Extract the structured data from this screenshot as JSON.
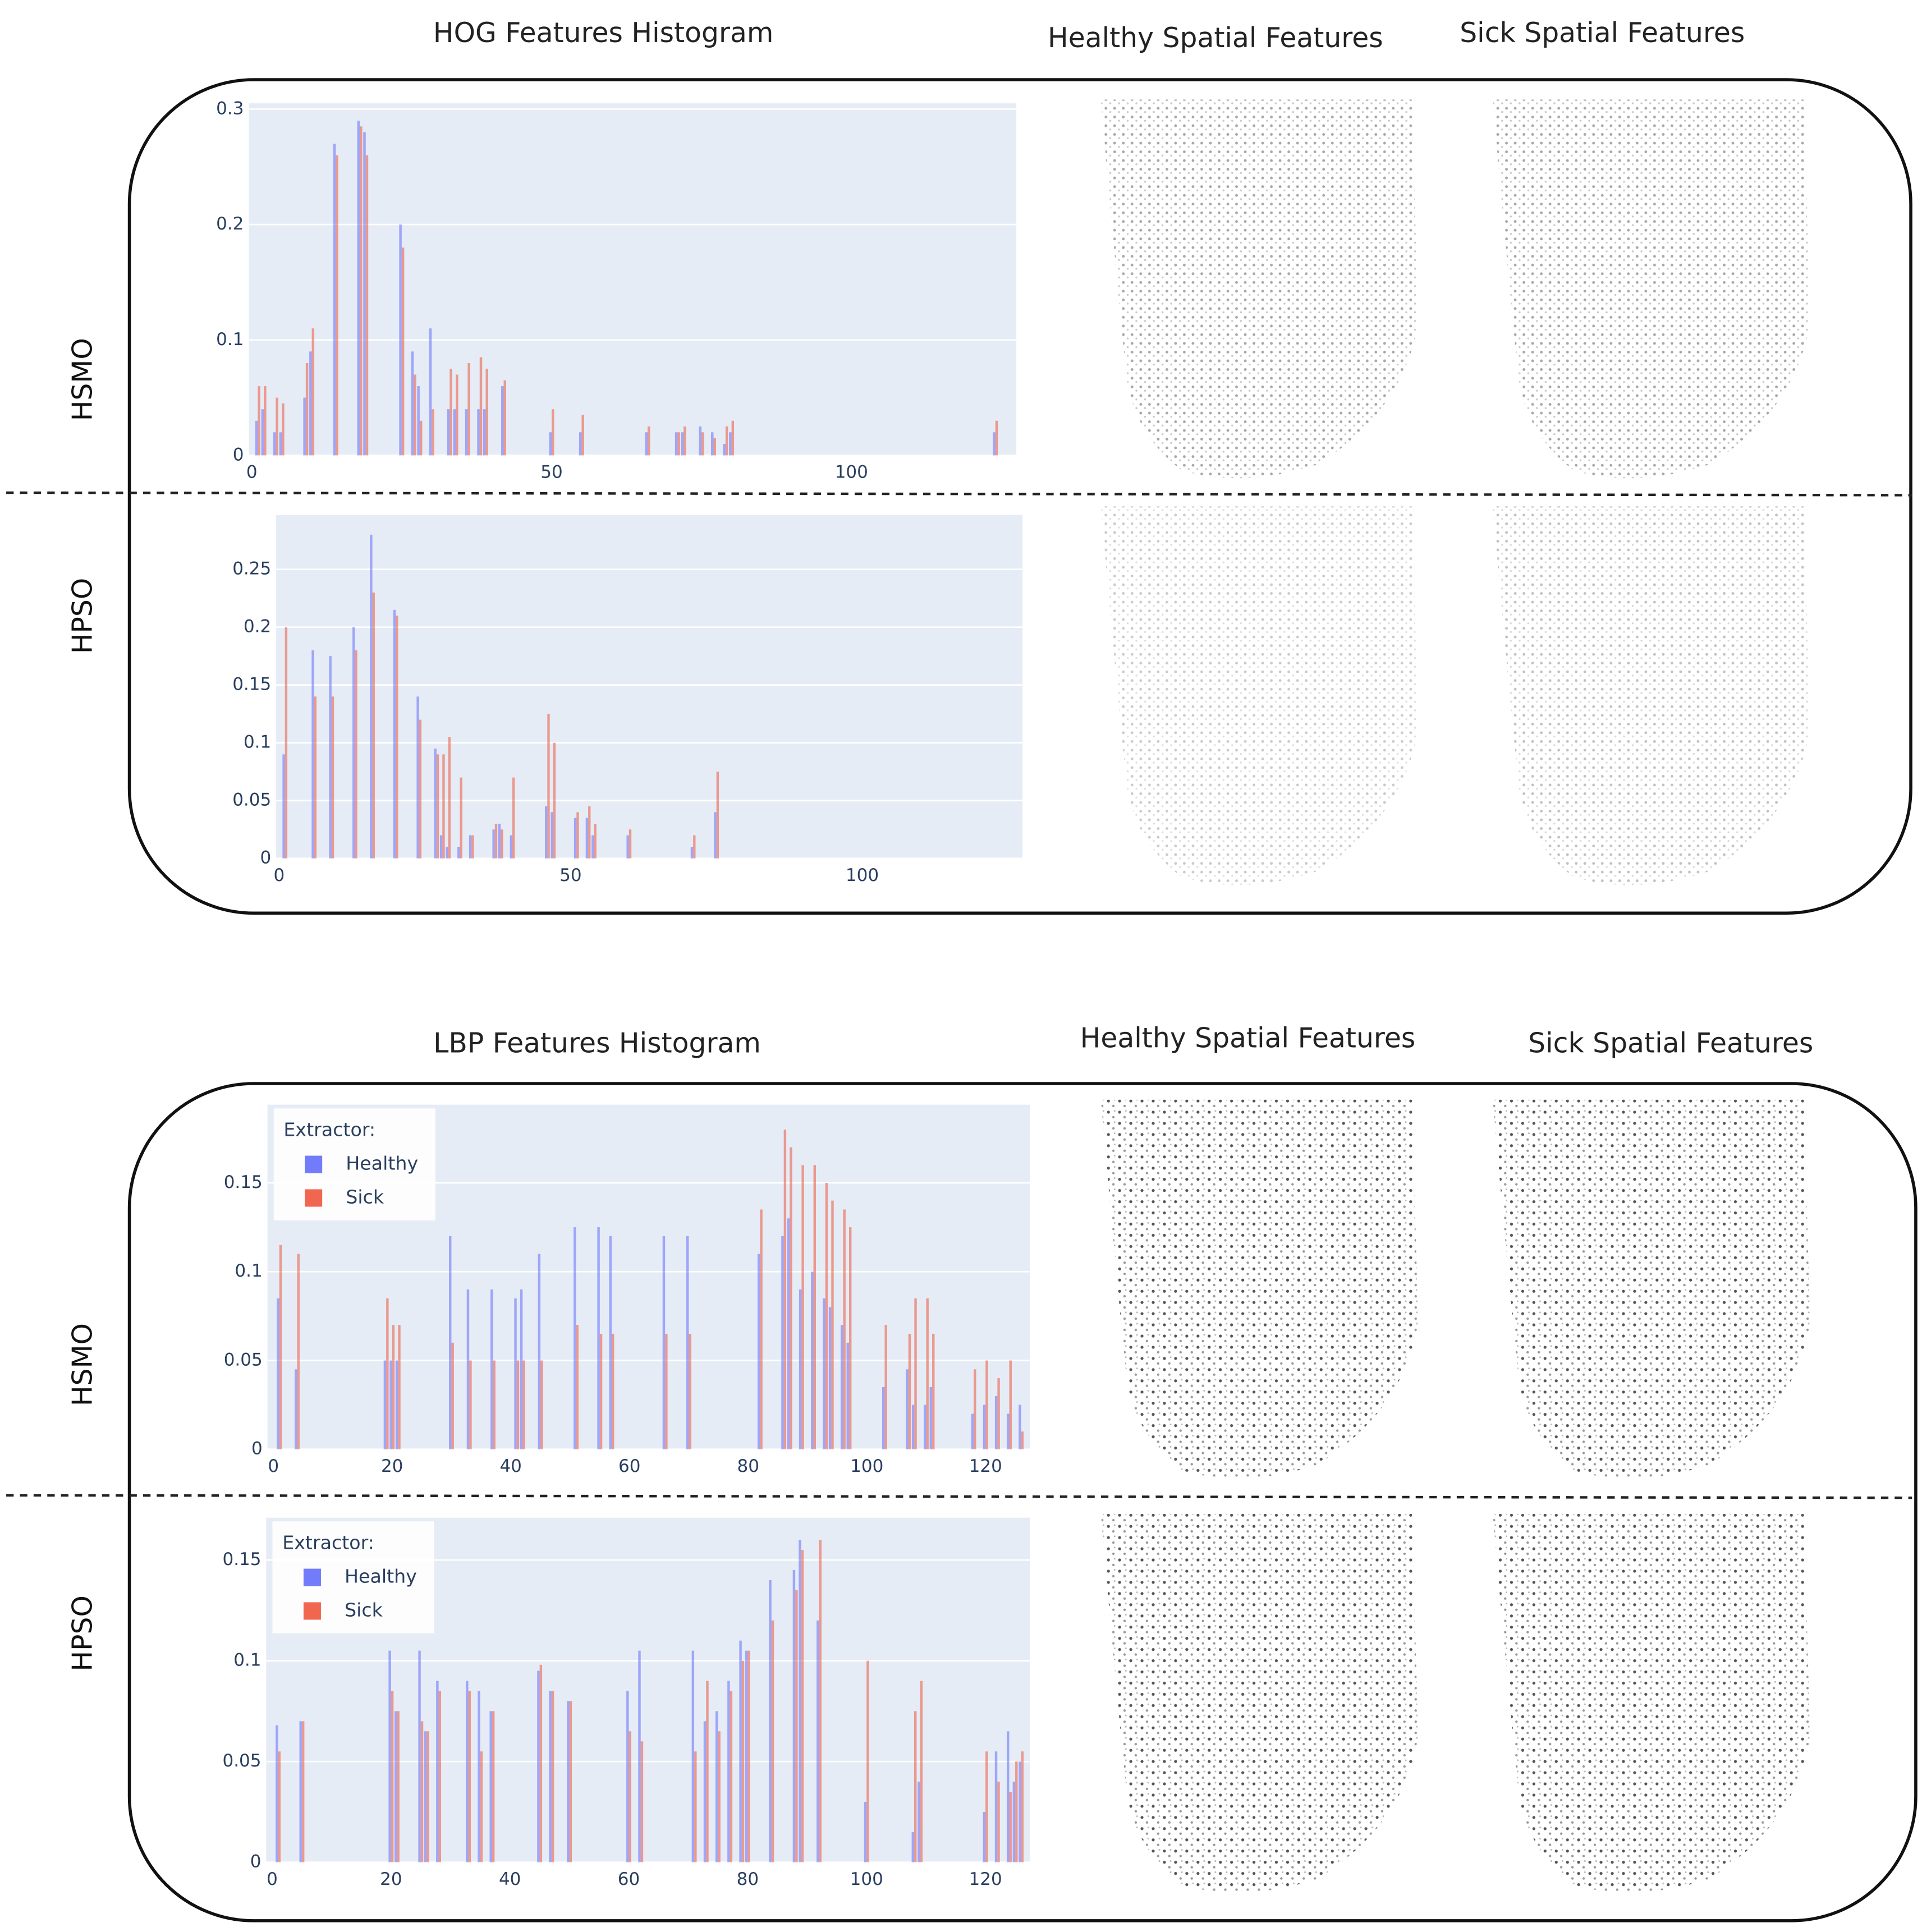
{
  "figure": {
    "panels": [
      {
        "title": "HOG Features Histogram",
        "healthy_title": "Healthy Spatial Features",
        "sick_title": "Sick Spatial Features",
        "rows": [
          "HSMO",
          "HPSO"
        ]
      },
      {
        "title": "LBP Features Histogram",
        "healthy_title": "Healthy Spatial Features",
        "sick_title": "Sick Spatial Features",
        "rows": [
          "HSMO",
          "HPSO"
        ]
      }
    ]
  },
  "chart_data": [
    {
      "type": "bar",
      "grid": true,
      "background": "#e5ecf6",
      "xlim": [
        -0.5,
        127.5
      ],
      "ylim": [
        0,
        0.305
      ],
      "xticks": [
        0,
        50,
        100
      ],
      "yticks": [
        0,
        0.1,
        0.2,
        0.3
      ],
      "x": [
        1,
        2,
        4,
        5,
        9,
        10,
        14,
        18,
        19,
        25,
        27,
        28,
        30,
        33,
        34,
        36,
        38,
        39,
        42,
        50,
        55,
        66,
        71,
        72,
        75,
        77,
        79,
        80,
        124
      ],
      "series": [
        {
          "name": "Healthy",
          "color": "#636efa",
          "values": [
            0.03,
            0.04,
            0.02,
            0.02,
            0.05,
            0.09,
            0.27,
            0.29,
            0.28,
            0.2,
            0.09,
            0.06,
            0.11,
            0.04,
            0.04,
            0.04,
            0.04,
            0.04,
            0.06,
            0.02,
            0.02,
            0.02,
            0.02,
            0.02,
            0.025,
            0.02,
            0.01,
            0.02,
            0.02
          ]
        },
        {
          "name": "Sick",
          "color": "#ef553b",
          "values": [
            0.06,
            0.06,
            0.05,
            0.045,
            0.08,
            0.11,
            0.26,
            0.285,
            0.26,
            0.18,
            0.07,
            0.03,
            0.04,
            0.075,
            0.07,
            0.08,
            0.085,
            0.075,
            0.065,
            0.04,
            0.035,
            0.025,
            0.02,
            0.025,
            0.02,
            0.015,
            0.025,
            0.03,
            0.03
          ]
        }
      ]
    },
    {
      "type": "bar",
      "grid": true,
      "background": "#e5ecf6",
      "xlim": [
        -0.5,
        127.5
      ],
      "ylim": [
        0,
        0.297
      ],
      "xticks": [
        0,
        50,
        100
      ],
      "yticks": [
        0,
        0.05,
        0.1,
        0.15,
        0.2,
        0.25
      ],
      "x": [
        1,
        6,
        9,
        13,
        16,
        20,
        24,
        27,
        28,
        29,
        31,
        33,
        37,
        38,
        40,
        46,
        47,
        51,
        53,
        54,
        60,
        71,
        75
      ],
      "series": [
        {
          "name": "Healthy",
          "color": "#636efa",
          "values": [
            0.09,
            0.18,
            0.175,
            0.2,
            0.28,
            0.215,
            0.14,
            0.095,
            0.02,
            0.01,
            0.01,
            0.02,
            0.025,
            0.03,
            0.02,
            0.045,
            0.04,
            0.035,
            0.035,
            0.02,
            0.02,
            0.01,
            0.04
          ]
        },
        {
          "name": "Sick",
          "color": "#ef553b",
          "values": [
            0.2,
            0.14,
            0.14,
            0.18,
            0.23,
            0.21,
            0.12,
            0.09,
            0.09,
            0.105,
            0.07,
            0.02,
            0.03,
            0.025,
            0.07,
            0.125,
            0.1,
            0.04,
            0.045,
            0.03,
            0.025,
            0.02,
            0.075
          ]
        }
      ]
    },
    {
      "type": "bar",
      "grid": true,
      "background": "#e5ecf6",
      "legend": "top-left",
      "legend_title": "Extractor:",
      "xlim": [
        -1,
        127.5
      ],
      "ylim": [
        0,
        0.194
      ],
      "xticks": [
        0,
        20,
        40,
        60,
        80,
        100,
        120
      ],
      "yticks": [
        0,
        0.05,
        0.1,
        0.15
      ],
      "x": [
        1,
        4,
        19,
        20,
        21,
        30,
        33,
        37,
        41,
        42,
        45,
        51,
        55,
        57,
        66,
        70,
        82,
        86,
        87,
        89,
        91,
        93,
        94,
        96,
        97,
        103,
        107,
        108,
        110,
        111,
        118,
        120,
        122,
        124,
        126
      ],
      "series": [
        {
          "name": "Healthy",
          "color": "#636efa",
          "values": [
            0.085,
            0.045,
            0.05,
            0.05,
            0.05,
            0.12,
            0.09,
            0.09,
            0.085,
            0.09,
            0.11,
            0.125,
            0.125,
            0.12,
            0.12,
            0.12,
            0.11,
            0.12,
            0.13,
            0.09,
            0.1,
            0.085,
            0.08,
            0.07,
            0.06,
            0.035,
            0.045,
            0.025,
            0.025,
            0.035,
            0.02,
            0.025,
            0.03,
            0.02,
            0.025
          ]
        },
        {
          "name": "Sick",
          "color": "#ef553b",
          "values": [
            0.115,
            0.11,
            0.085,
            0.07,
            0.07,
            0.06,
            0.05,
            0.05,
            0.05,
            0.05,
            0.05,
            0.07,
            0.065,
            0.065,
            0.065,
            0.065,
            0.135,
            0.18,
            0.17,
            0.16,
            0.16,
            0.15,
            0.14,
            0.135,
            0.125,
            0.07,
            0.065,
            0.085,
            0.085,
            0.065,
            0.045,
            0.05,
            0.04,
            0.05,
            0.01
          ]
        }
      ]
    },
    {
      "type": "bar",
      "grid": true,
      "background": "#e5ecf6",
      "legend": "top-left",
      "legend_title": "Extractor:",
      "xlim": [
        -1,
        127.5
      ],
      "ylim": [
        0,
        0.171
      ],
      "xticks": [
        0,
        20,
        40,
        60,
        80,
        100,
        120
      ],
      "yticks": [
        0,
        0.05,
        0.1,
        0.15
      ],
      "x": [
        1,
        5,
        20,
        21,
        25,
        26,
        28,
        33,
        35,
        37,
        45,
        47,
        50,
        60,
        62,
        71,
        73,
        75,
        77,
        79,
        80,
        84,
        88,
        89,
        92,
        100,
        108,
        109,
        120,
        122,
        124,
        125,
        126
      ],
      "series": [
        {
          "name": "Healthy",
          "color": "#636efa",
          "values": [
            0.068,
            0.07,
            0.105,
            0.075,
            0.105,
            0.065,
            0.09,
            0.09,
            0.085,
            0.075,
            0.095,
            0.085,
            0.08,
            0.085,
            0.105,
            0.105,
            0.07,
            0.075,
            0.09,
            0.11,
            0.105,
            0.14,
            0.145,
            0.16,
            0.12,
            0.03,
            0.015,
            0.04,
            0.025,
            0.055,
            0.065,
            0.04,
            0.05
          ]
        },
        {
          "name": "Sick",
          "color": "#ef553b",
          "values": [
            0.055,
            0.07,
            0.085,
            0.075,
            0.07,
            0.065,
            0.085,
            0.085,
            0.055,
            0.075,
            0.098,
            0.085,
            0.08,
            0.065,
            0.06,
            0.055,
            0.09,
            0.065,
            0.085,
            0.1,
            0.105,
            0.12,
            0.135,
            0.155,
            0.16,
            0.1,
            0.075,
            0.09,
            0.055,
            0.04,
            0.035,
            0.05,
            0.055
          ]
        }
      ]
    }
  ]
}
